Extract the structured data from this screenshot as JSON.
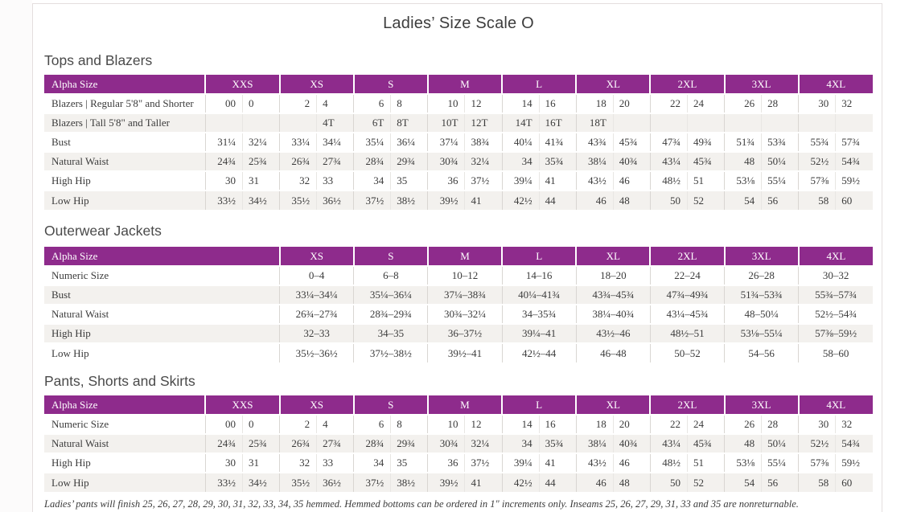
{
  "page": {
    "title": "Ladies’ Size Scale O",
    "footnote": "Ladies’ pants will finish 25, 26, 27, 28, 29, 30, 31, 32, 33, 34, 35 hemmed. Hemmed bottoms can be ordered in 1\" increments only. Inseams 25, 26, 27, 29, 31, 33 and 35 are nonreturnable."
  },
  "colors": {
    "header_purple": "#8e2b8c",
    "stripe_gray": "#f3f1ee",
    "text": "#3b3b3b"
  },
  "tables": [
    {
      "heading": "Tops and Blazers",
      "label_header": "Alpha Size",
      "paired": true,
      "groups": [
        "XXS",
        "XS",
        "S",
        "M",
        "L",
        "XL",
        "2XL",
        "3XL",
        "4XL"
      ],
      "rows": [
        {
          "label": "Blazers  |  Regular 5'8\" and Shorter",
          "values": [
            "00",
            "0",
            "2",
            "4",
            "6",
            "8",
            "10",
            "12",
            "14",
            "16",
            "18",
            "20",
            "22",
            "24",
            "26",
            "28",
            "30",
            "32"
          ]
        },
        {
          "label": "Blazers  |  Tall 5'8\" and Taller",
          "values": [
            "",
            "",
            "",
            "4T",
            "6T",
            "8T",
            "10T",
            "12T",
            "14T",
            "16T",
            "18T",
            "",
            "",
            "",
            "",
            "",
            "",
            ""
          ]
        },
        {
          "label": "Bust",
          "values": [
            "31¼",
            "32¼",
            "33¼",
            "34¼",
            "35¼",
            "36¼",
            "37¼",
            "38¾",
            "40¼",
            "41¾",
            "43¾",
            "45¾",
            "47¾",
            "49¾",
            "51¾",
            "53¾",
            "55¾",
            "57¾"
          ]
        },
        {
          "label": "Natural Waist",
          "values": [
            "24¾",
            "25¾",
            "26¾",
            "27¾",
            "28¾",
            "29¾",
            "30¾",
            "32¼",
            "34",
            "35¾",
            "38¼",
            "40¾",
            "43¼",
            "45¾",
            "48",
            "50¼",
            "52½",
            "54¾"
          ]
        },
        {
          "label": "High Hip",
          "values": [
            "30",
            "31",
            "32",
            "33",
            "34",
            "35",
            "36",
            "37½",
            "39¼",
            "41",
            "43½",
            "46",
            "48½",
            "51",
            "53⅛",
            "55¼",
            "57⅜",
            "59½"
          ]
        },
        {
          "label": "Low Hip",
          "values": [
            "33½",
            "34½",
            "35½",
            "36½",
            "37½",
            "38½",
            "39½",
            "41",
            "42½",
            "44",
            "46",
            "48",
            "50",
            "52",
            "54",
            "56",
            "58",
            "60"
          ]
        }
      ]
    },
    {
      "heading": "Outerwear Jackets",
      "label_header": "Alpha Size",
      "paired": false,
      "groups": [
        "XS",
        "S",
        "M",
        "L",
        "XL",
        "2XL",
        "3XL",
        "4XL"
      ],
      "rows": [
        {
          "label": "Numeric Size",
          "values": [
            "0–4",
            "6–8",
            "10–12",
            "14–16",
            "18–20",
            "22–24",
            "26–28",
            "30–32"
          ]
        },
        {
          "label": "Bust",
          "values": [
            "33¼–34¼",
            "35¼–36¼",
            "37¼–38¾",
            "40¼–41¾",
            "43¾–45¾",
            "47¾–49¾",
            "51¾–53¾",
            "55¾–57¾"
          ]
        },
        {
          "label": "Natural Waist",
          "values": [
            "26¾–27¾",
            "28¾–29¾",
            "30¾–32¼",
            "34–35¾",
            "38¼–40¾",
            "43¼–45¾",
            "48–50¼",
            "52½–54¾"
          ]
        },
        {
          "label": "High Hip",
          "values": [
            "32–33",
            "34–35",
            "36–37½",
            "39¼–41",
            "43½–46",
            "48½–51",
            "53⅛–55¼",
            "57⅜–59½"
          ]
        },
        {
          "label": "Low Hip",
          "values": [
            "35½–36½",
            "37½–38½",
            "39½–41",
            "42½–44",
            "46–48",
            "50–52",
            "54–56",
            "58–60"
          ]
        }
      ]
    },
    {
      "heading": "Pants, Shorts and Skirts",
      "label_header": "Alpha Size",
      "paired": true,
      "groups": [
        "XXS",
        "XS",
        "S",
        "M",
        "L",
        "XL",
        "2XL",
        "3XL",
        "4XL"
      ],
      "rows": [
        {
          "label": "Numeric Size",
          "values": [
            "00",
            "0",
            "2",
            "4",
            "6",
            "8",
            "10",
            "12",
            "14",
            "16",
            "18",
            "20",
            "22",
            "24",
            "26",
            "28",
            "30",
            "32"
          ]
        },
        {
          "label": "Natural Waist",
          "values": [
            "24¾",
            "25¾",
            "26¾",
            "27¾",
            "28¾",
            "29¾",
            "30¾",
            "32¼",
            "34",
            "35¾",
            "38¼",
            "40¾",
            "43¼",
            "45¾",
            "48",
            "50¼",
            "52½",
            "54¾"
          ]
        },
        {
          "label": "High Hip",
          "values": [
            "30",
            "31",
            "32",
            "33",
            "34",
            "35",
            "36",
            "37½",
            "39¼",
            "41",
            "43½",
            "46",
            "48½",
            "51",
            "53⅛",
            "55¼",
            "57⅜",
            "59½"
          ]
        },
        {
          "label": "Low Hip",
          "values": [
            "33½",
            "34½",
            "35½",
            "36½",
            "37½",
            "38½",
            "39½",
            "41",
            "42½",
            "44",
            "46",
            "48",
            "50",
            "52",
            "54",
            "56",
            "58",
            "60"
          ]
        }
      ]
    }
  ]
}
